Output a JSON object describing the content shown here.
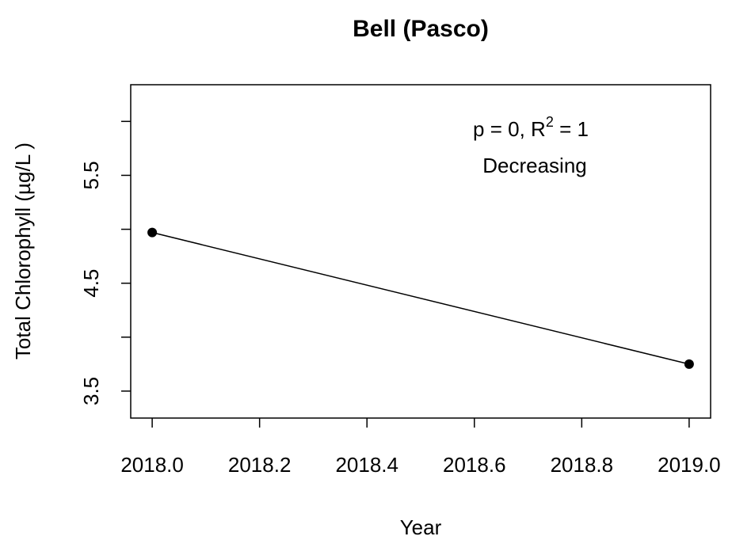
{
  "chart_data": {
    "type": "line",
    "title": "Bell (Pasco)",
    "xlabel": "Year",
    "ylabel": "Total Chlorophyll (µg/L )",
    "x": [
      2018,
      2019
    ],
    "series": [
      {
        "color": "#000000",
        "values": [
          4.97,
          3.75
        ]
      }
    ],
    "xlim": [
      2017.96,
      2019.04
    ],
    "ylim": [
      3.25,
      6.34
    ],
    "xticks": [
      {
        "value": 2018,
        "label": "2018.0"
      },
      {
        "value": 2018.2,
        "label": "2018.2"
      },
      {
        "value": 2018.4,
        "label": "2018.4"
      },
      {
        "value": 2018.6,
        "label": "2018.6"
      },
      {
        "value": 2018.8,
        "label": "2018.8"
      },
      {
        "value": 2019,
        "label": "2019.0"
      }
    ],
    "yticks": [
      3.5,
      4.5,
      5.5
    ],
    "yticks_unlabeled": [
      4,
      5,
      6
    ],
    "annotation": {
      "text_before": "p = 0, R",
      "superscript": "2",
      "text_after": " = 1",
      "line2": "Decreasing"
    }
  }
}
